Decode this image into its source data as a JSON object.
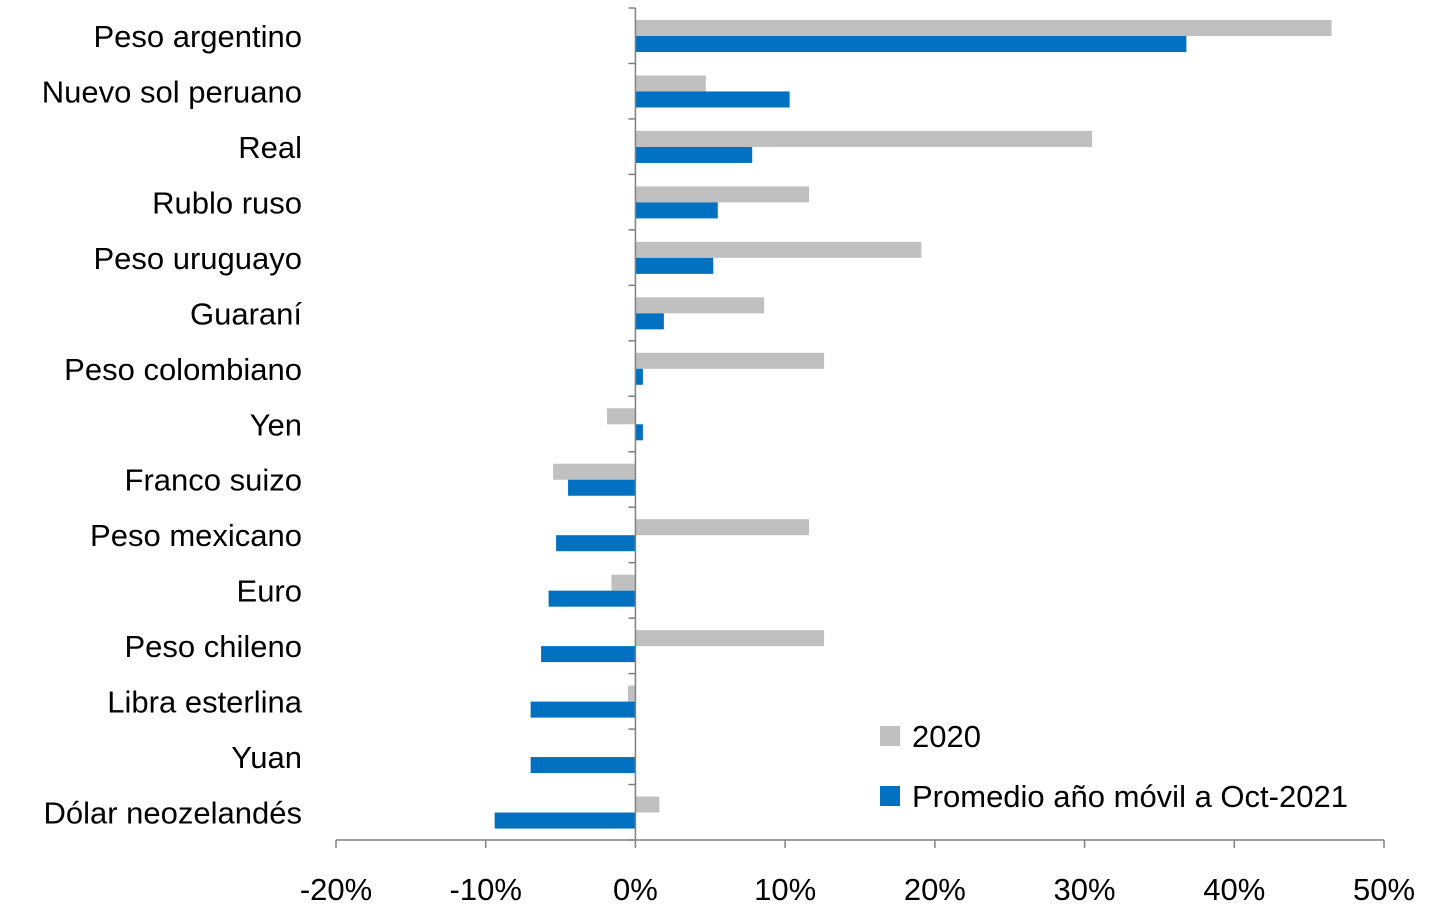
{
  "chart_data": {
    "type": "bar",
    "orientation": "horizontal",
    "title": "",
    "xlabel": "",
    "ylabel": "",
    "categories": [
      "Peso argentino",
      "Nuevo sol peruano",
      "Real",
      "Rublo ruso",
      "Peso uruguayo",
      "Guaraní",
      "Peso colombiano",
      "Yen",
      "Franco suizo",
      "Peso mexicano",
      "Euro",
      "Peso chileno",
      "Libra esterlina",
      "Yuan",
      "Dólar neozelandés"
    ],
    "series": [
      {
        "name": "2020",
        "color": "#c0c0c0",
        "values": [
          46.5,
          4.7,
          30.5,
          11.6,
          19.1,
          8.6,
          12.6,
          -1.9,
          -5.5,
          11.6,
          -1.6,
          12.6,
          -0.5,
          0.0,
          1.6
        ]
      },
      {
        "name": "Promedio año móvil a Oct-2021",
        "color": "#0070c0",
        "values": [
          36.8,
          10.3,
          7.8,
          5.5,
          5.2,
          1.9,
          0.5,
          0.5,
          -4.5,
          -5.3,
          -5.8,
          -6.3,
          -7.0,
          -7.0,
          -9.4
        ]
      }
    ],
    "xlim": [
      -20,
      50
    ],
    "xticks": [
      -20,
      -10,
      0,
      10,
      20,
      30,
      40,
      50
    ],
    "xtick_labels": [
      "-20%",
      "-10%",
      "0%",
      "10%",
      "20%",
      "30%",
      "40%",
      "50%"
    ],
    "grid": false,
    "legend_position": "bottom-right"
  }
}
